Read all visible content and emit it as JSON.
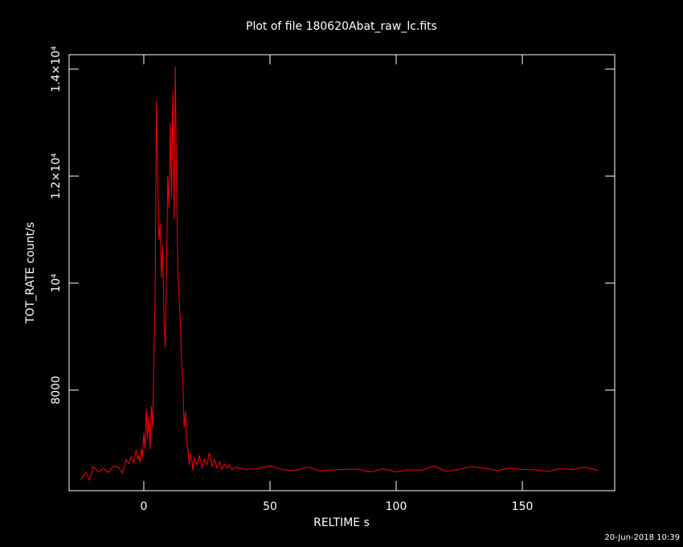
{
  "chart_data": {
    "type": "line",
    "title": "Plot of file 180620Abat_raw_lc.fits",
    "x_label": "RELTIME  s",
    "y_label": "TOT_RATE  count/s",
    "timestamp": "20-Jun-2018 10:39",
    "color": "#ff0000",
    "xlim": [
      -29.6,
      186.6
    ],
    "ylim": [
      6120,
      14270
    ],
    "xticks": [
      0,
      50,
      100,
      150
    ],
    "yticks": [
      8000,
      {
        "value": 10000,
        "label": "10⁴"
      },
      {
        "value": 12000,
        "label": "1.2×10⁴"
      },
      {
        "value": 14000,
        "label": "1.4×10⁴"
      }
    ],
    "x": [
      -25,
      -23,
      -21.5,
      -20,
      -18,
      -16,
      -14,
      -12,
      -10,
      -8.5,
      -7,
      -6,
      -5,
      -4,
      -3,
      -2.5,
      -2,
      -1.5,
      -1,
      -0.5,
      0,
      0.5,
      1,
      1.5,
      2,
      2.5,
      3,
      3.5,
      4,
      4.5,
      5,
      5.5,
      6,
      6.5,
      7,
      7.5,
      8,
      8.5,
      9,
      9.5,
      10,
      10.5,
      11,
      11.5,
      12,
      12.5,
      13,
      13.5,
      14,
      14.5,
      15,
      15.5,
      16,
      16.5,
      17,
      17.5,
      18,
      18.5,
      19,
      19.5,
      20,
      21,
      22,
      23,
      24,
      25,
      26,
      27,
      28,
      29,
      30,
      31,
      32,
      33,
      34,
      35,
      36,
      40,
      45,
      50,
      55,
      60,
      65,
      70,
      75,
      80,
      85,
      90,
      95,
      100,
      105,
      110,
      115,
      120,
      125,
      130,
      135,
      140,
      145,
      150,
      155,
      160,
      165,
      170,
      175,
      180
    ],
    "values": [
      6330,
      6460,
      6320,
      6570,
      6470,
      6530,
      6460,
      6580,
      6560,
      6450,
      6700,
      6620,
      6750,
      6650,
      6880,
      6700,
      6780,
      6650,
      6900,
      6750,
      7200,
      6900,
      7650,
      7100,
      7500,
      6900,
      7700,
      7300,
      8600,
      9800,
      13400,
      12000,
      10800,
      11100,
      10100,
      10700,
      9300,
      8800,
      10200,
      12000,
      11400,
      13000,
      11600,
      13600,
      11200,
      14050,
      11700,
      10200,
      9700,
      9300,
      8500,
      8100,
      7300,
      7600,
      7000,
      6900,
      6600,
      6800,
      6700,
      6500,
      6750,
      6600,
      6780,
      6550,
      6700,
      6600,
      6830,
      6580,
      6700,
      6550,
      6660,
      6520,
      6620,
      6540,
      6600,
      6510,
      6560,
      6520,
      6530,
      6590,
      6510,
      6500,
      6560,
      6490,
      6510,
      6520,
      6520,
      6470,
      6530,
      6470,
      6510,
      6500,
      6580,
      6480,
      6520,
      6570,
      6540,
      6500,
      6540,
      6520,
      6510,
      6480,
      6530,
      6520,
      6560,
      6500
    ]
  }
}
